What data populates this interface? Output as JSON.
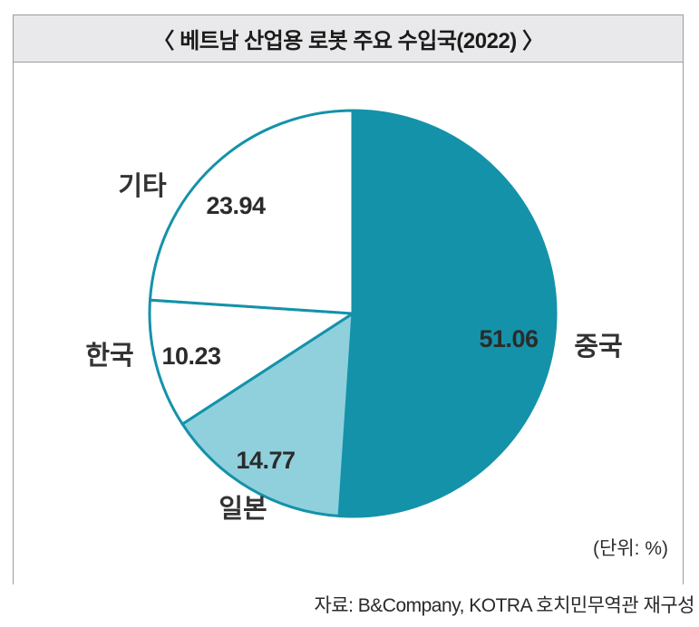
{
  "header": {
    "title": "〈 베트남 산업용 로봇 주요 수입국(2022) 〉"
  },
  "footer": {
    "unit_note": "(단위: %)",
    "source": "자료: B&Company, KOTRA 호치민무역관 재구성"
  },
  "colors": {
    "teal": "#1492aa",
    "light_teal": "#8fd0dc",
    "white": "#ffffff",
    "slice_stroke": "#1492aa",
    "value_text": "#2b2b2b",
    "category_text": "#333333",
    "titlebar_bg": "#e9e9eb",
    "box_border": "#9c9c9e"
  },
  "chart_data": {
    "type": "pie",
    "title": "베트남 산업용 로봇 주요 수입국(2022)",
    "unit": "%",
    "start_angle_deg": 0,
    "direction": "clockwise",
    "legend_position": "none",
    "slices": [
      {
        "label": "중국",
        "value": 51.06,
        "color": "#1492aa"
      },
      {
        "label": "일본",
        "value": 14.77,
        "color": "#8fd0dc"
      },
      {
        "label": "한국",
        "value": 10.23,
        "color": "#ffffff"
      },
      {
        "label": "기타",
        "value": 23.94,
        "color": "#ffffff"
      }
    ]
  }
}
